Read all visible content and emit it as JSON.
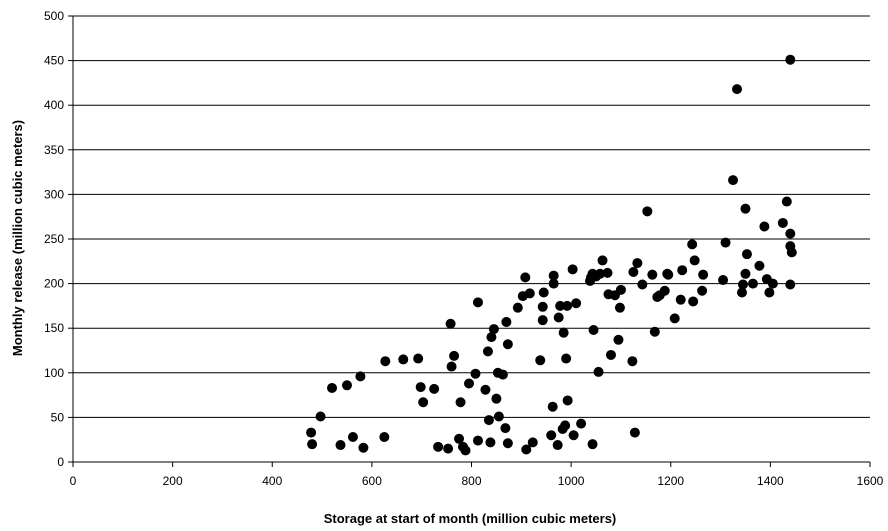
{
  "chart_data": {
    "type": "scatter",
    "title": "",
    "xlabel": "Storage at start of month (million cubic meters)",
    "ylabel": "Monthly release (million cubic meters)",
    "xlim": [
      0,
      1600
    ],
    "ylim": [
      0,
      500
    ],
    "xticks": [
      "0",
      "200",
      "400",
      "600",
      "800",
      "1000",
      "1200",
      "1400",
      "1600"
    ],
    "yticks": [
      "0",
      "50",
      "100",
      "150",
      "200",
      "250",
      "300",
      "350",
      "400",
      "450",
      "500"
    ],
    "grid": "horizontal",
    "marker_color": "#000000",
    "points": [
      [
        478,
        33
      ],
      [
        480,
        20
      ],
      [
        497,
        51
      ],
      [
        520,
        83
      ],
      [
        537,
        19
      ],
      [
        550,
        86
      ],
      [
        562,
        28
      ],
      [
        577,
        96
      ],
      [
        583,
        16
      ],
      [
        625,
        28
      ],
      [
        627,
        113
      ],
      [
        663,
        115
      ],
      [
        693,
        116
      ],
      [
        698,
        84
      ],
      [
        703,
        67
      ],
      [
        725,
        82
      ],
      [
        733,
        17
      ],
      [
        758,
        155
      ],
      [
        760,
        107
      ],
      [
        765,
        119
      ],
      [
        753,
        15
      ],
      [
        775,
        26
      ],
      [
        778,
        67
      ],
      [
        783,
        17
      ],
      [
        788,
        13
      ],
      [
        795,
        88
      ],
      [
        808,
        99
      ],
      [
        813,
        179
      ],
      [
        813,
        24
      ],
      [
        828,
        81
      ],
      [
        833,
        124
      ],
      [
        835,
        47
      ],
      [
        838,
        22
      ],
      [
        840,
        140
      ],
      [
        845,
        149
      ],
      [
        850,
        71
      ],
      [
        853,
        100
      ],
      [
        855,
        51
      ],
      [
        863,
        98
      ],
      [
        868,
        38
      ],
      [
        870,
        157
      ],
      [
        873,
        21
      ],
      [
        873,
        132
      ],
      [
        893,
        173
      ],
      [
        903,
        186
      ],
      [
        908,
        207
      ],
      [
        910,
        14
      ],
      [
        917,
        189
      ],
      [
        923,
        22
      ],
      [
        938,
        114
      ],
      [
        943,
        159
      ],
      [
        943,
        174
      ],
      [
        945,
        190
      ],
      [
        960,
        30
      ],
      [
        963,
        62
      ],
      [
        965,
        209
      ],
      [
        965,
        200
      ],
      [
        973,
        19
      ],
      [
        975,
        162
      ],
      [
        978,
        175
      ],
      [
        983,
        37
      ],
      [
        985,
        145
      ],
      [
        988,
        41
      ],
      [
        990,
        116
      ],
      [
        992,
        175
      ],
      [
        993,
        69
      ],
      [
        1003,
        216
      ],
      [
        1005,
        30
      ],
      [
        1010,
        178
      ],
      [
        1020,
        43
      ],
      [
        1038,
        203
      ],
      [
        1040,
        207
      ],
      [
        1043,
        211
      ],
      [
        1043,
        20
      ],
      [
        1045,
        148
      ],
      [
        1050,
        208
      ],
      [
        1055,
        101
      ],
      [
        1058,
        211
      ],
      [
        1063,
        226
      ],
      [
        1073,
        212
      ],
      [
        1075,
        188
      ],
      [
        1080,
        120
      ],
      [
        1088,
        187
      ],
      [
        1095,
        137
      ],
      [
        1098,
        173
      ],
      [
        1100,
        193
      ],
      [
        1123,
        113
      ],
      [
        1125,
        213
      ],
      [
        1128,
        33
      ],
      [
        1133,
        223
      ],
      [
        1143,
        199
      ],
      [
        1153,
        281
      ],
      [
        1163,
        210
      ],
      [
        1168,
        146
      ],
      [
        1173,
        185
      ],
      [
        1178,
        187
      ],
      [
        1188,
        192
      ],
      [
        1193,
        211
      ],
      [
        1195,
        210
      ],
      [
        1208,
        161
      ],
      [
        1220,
        182
      ],
      [
        1223,
        215
      ],
      [
        1243,
        244
      ],
      [
        1245,
        180
      ],
      [
        1248,
        226
      ],
      [
        1263,
        192
      ],
      [
        1265,
        210
      ],
      [
        1305,
        204
      ],
      [
        1310,
        246
      ],
      [
        1325,
        316
      ],
      [
        1333,
        418
      ],
      [
        1343,
        190
      ],
      [
        1345,
        199
      ],
      [
        1350,
        211
      ],
      [
        1350,
        284
      ],
      [
        1353,
        233
      ],
      [
        1365,
        200
      ],
      [
        1378,
        220
      ],
      [
        1388,
        264
      ],
      [
        1393,
        205
      ],
      [
        1398,
        190
      ],
      [
        1405,
        200
      ],
      [
        1425,
        268
      ],
      [
        1433,
        292
      ],
      [
        1440,
        451
      ],
      [
        1440,
        256
      ],
      [
        1440,
        242
      ],
      [
        1440,
        199
      ],
      [
        1443,
        235
      ]
    ]
  }
}
